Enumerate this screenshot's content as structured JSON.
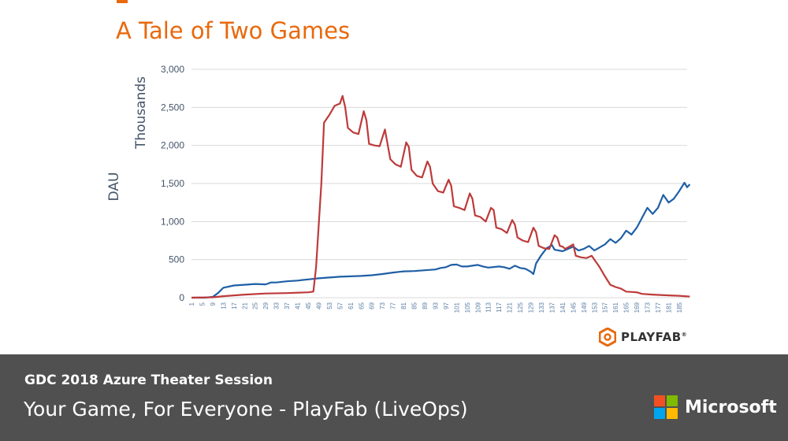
{
  "title": "A Tale of Two Games",
  "footer": {
    "session": "GDC 2018 Azure Theater Session",
    "talk_title": "Your Game, For Everyone - PlayFab (LiveOps)",
    "brand": "Microsoft",
    "brand_colors": [
      "#F25022",
      "#7FBA00",
      "#00A4EF",
      "#FFB900"
    ],
    "bg": "#505050"
  },
  "logo": {
    "text": "PLAYFAB",
    "mark": "®",
    "color": "#E8690E"
  },
  "colors": {
    "title": "#E8690E",
    "axis_text": "#44546A",
    "blue_series": "#1F5FA6",
    "red_series": "#BE3A3A",
    "grid": "#D9D9D9"
  },
  "chart_data": {
    "type": "line",
    "xlabel": "",
    "ylabel": "DAU",
    "yunit": "Thousands",
    "ylim": [
      0,
      3000
    ],
    "yticks": [
      0,
      500,
      1000,
      1500,
      2000,
      2500,
      3000
    ],
    "ytick_labels": [
      "0",
      "500",
      "1,000",
      "1,500",
      "2,000",
      "2,500",
      "3,000"
    ],
    "xlim": [
      1,
      188
    ],
    "xticks": [
      1,
      5,
      9,
      13,
      17,
      21,
      25,
      29,
      33,
      37,
      41,
      45,
      49,
      53,
      57,
      61,
      65,
      69,
      73,
      77,
      81,
      85,
      89,
      93,
      97,
      101,
      105,
      109,
      113,
      117,
      121,
      125,
      129,
      133,
      137,
      141,
      145,
      149,
      153,
      157,
      161,
      165,
      169,
      173,
      177,
      181,
      185
    ],
    "grid": "horizontal",
    "legend": "none",
    "series": [
      {
        "color": "#1F5FA6",
        "points": [
          [
            1,
            0
          ],
          [
            6,
            0
          ],
          [
            9,
            10
          ],
          [
            11,
            60
          ],
          [
            13,
            130
          ],
          [
            17,
            160
          ],
          [
            21,
            170
          ],
          [
            25,
            180
          ],
          [
            29,
            175
          ],
          [
            31,
            200
          ],
          [
            33,
            200
          ],
          [
            37,
            215
          ],
          [
            41,
            225
          ],
          [
            45,
            240
          ],
          [
            49,
            255
          ],
          [
            53,
            265
          ],
          [
            57,
            275
          ],
          [
            61,
            280
          ],
          [
            65,
            285
          ],
          [
            69,
            295
          ],
          [
            73,
            310
          ],
          [
            77,
            330
          ],
          [
            81,
            345
          ],
          [
            85,
            350
          ],
          [
            89,
            360
          ],
          [
            93,
            370
          ],
          [
            95,
            390
          ],
          [
            97,
            400
          ],
          [
            99,
            430
          ],
          [
            101,
            435
          ],
          [
            103,
            410
          ],
          [
            105,
            410
          ],
          [
            109,
            430
          ],
          [
            111,
            410
          ],
          [
            113,
            395
          ],
          [
            117,
            410
          ],
          [
            119,
            400
          ],
          [
            121,
            380
          ],
          [
            123,
            420
          ],
          [
            125,
            390
          ],
          [
            127,
            380
          ],
          [
            129,
            340
          ],
          [
            130,
            310
          ],
          [
            131,
            450
          ],
          [
            133,
            560
          ],
          [
            135,
            650
          ],
          [
            137,
            690
          ],
          [
            138,
            630
          ],
          [
            141,
            610
          ],
          [
            143,
            640
          ],
          [
            145,
            670
          ],
          [
            147,
            620
          ],
          [
            149,
            640
          ],
          [
            151,
            680
          ],
          [
            153,
            620
          ],
          [
            155,
            660
          ],
          [
            157,
            700
          ],
          [
            159,
            770
          ],
          [
            161,
            720
          ],
          [
            163,
            780
          ],
          [
            165,
            880
          ],
          [
            167,
            830
          ],
          [
            169,
            920
          ],
          [
            171,
            1050
          ],
          [
            173,
            1180
          ],
          [
            175,
            1100
          ],
          [
            177,
            1180
          ],
          [
            179,
            1350
          ],
          [
            181,
            1250
          ],
          [
            183,
            1300
          ],
          [
            185,
            1400
          ],
          [
            187,
            1510
          ],
          [
            188,
            1450
          ],
          [
            189,
            1490
          ]
        ]
      },
      {
        "color": "#BE3A3A",
        "points": [
          [
            1,
            0
          ],
          [
            9,
            5
          ],
          [
            13,
            20
          ],
          [
            21,
            40
          ],
          [
            29,
            55
          ],
          [
            37,
            60
          ],
          [
            45,
            70
          ],
          [
            47,
            80
          ],
          [
            48,
            400
          ],
          [
            50,
            1500
          ],
          [
            51,
            2300
          ],
          [
            53,
            2400
          ],
          [
            55,
            2520
          ],
          [
            57,
            2550
          ],
          [
            58,
            2650
          ],
          [
            59,
            2500
          ],
          [
            60,
            2230
          ],
          [
            62,
            2170
          ],
          [
            64,
            2150
          ],
          [
            66,
            2450
          ],
          [
            67,
            2330
          ],
          [
            68,
            2020
          ],
          [
            70,
            2000
          ],
          [
            72,
            1990
          ],
          [
            74,
            2210
          ],
          [
            76,
            1820
          ],
          [
            78,
            1750
          ],
          [
            80,
            1720
          ],
          [
            82,
            2040
          ],
          [
            83,
            1980
          ],
          [
            84,
            1680
          ],
          [
            86,
            1600
          ],
          [
            88,
            1580
          ],
          [
            90,
            1790
          ],
          [
            91,
            1720
          ],
          [
            92,
            1500
          ],
          [
            94,
            1400
          ],
          [
            96,
            1380
          ],
          [
            98,
            1550
          ],
          [
            99,
            1470
          ],
          [
            100,
            1200
          ],
          [
            102,
            1180
          ],
          [
            104,
            1150
          ],
          [
            106,
            1370
          ],
          [
            107,
            1300
          ],
          [
            108,
            1080
          ],
          [
            110,
            1060
          ],
          [
            112,
            1000
          ],
          [
            114,
            1180
          ],
          [
            115,
            1150
          ],
          [
            116,
            920
          ],
          [
            118,
            900
          ],
          [
            120,
            850
          ],
          [
            122,
            1020
          ],
          [
            123,
            960
          ],
          [
            124,
            790
          ],
          [
            126,
            750
          ],
          [
            128,
            730
          ],
          [
            130,
            920
          ],
          [
            131,
            860
          ],
          [
            132,
            680
          ],
          [
            134,
            650
          ],
          [
            136,
            640
          ],
          [
            138,
            820
          ],
          [
            139,
            790
          ],
          [
            140,
            680
          ],
          [
            141,
            670
          ],
          [
            142,
            640
          ],
          [
            144,
            680
          ],
          [
            145,
            700
          ],
          [
            146,
            550
          ],
          [
            148,
            530
          ],
          [
            150,
            520
          ],
          [
            152,
            550
          ],
          [
            153,
            500
          ],
          [
            155,
            400
          ],
          [
            157,
            280
          ],
          [
            159,
            170
          ],
          [
            161,
            140
          ],
          [
            163,
            120
          ],
          [
            165,
            80
          ],
          [
            169,
            70
          ],
          [
            171,
            50
          ],
          [
            175,
            40
          ],
          [
            181,
            30
          ],
          [
            185,
            25
          ],
          [
            189,
            15
          ]
        ]
      }
    ]
  }
}
